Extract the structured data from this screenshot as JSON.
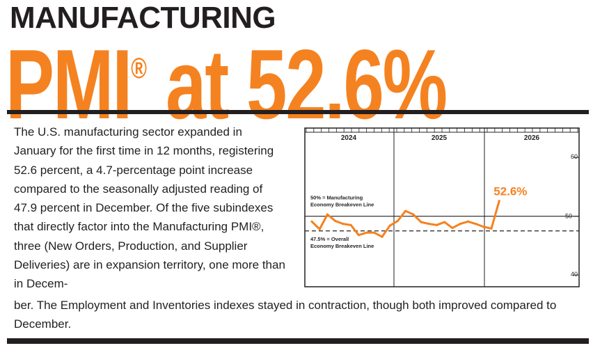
{
  "header": {
    "kicker": "MANUFACTURING",
    "headline_main": "PMI",
    "headline_reg": "®",
    "headline_rest": " at 52.6%"
  },
  "article": {
    "paragraph_part1": "The U.S. manufacturing sector expanded in January for the first time in 12 months, registering 52.6 percent, a 4.7-percentage point increase compared to the seasonally adjusted reading of 47.9 percent in December. Of the five subindexes that directly factor into the Manufacturing PMI®, three (New Orders, Production, and Supplier Deliveries) are in expansion territory, one more than in Decem-",
    "paragraph_part2": "ber. The Employment and Inventories indexes stayed in contraction, though both improved compared to December."
  },
  "colors": {
    "accent": "#f58220",
    "text": "#231f20"
  },
  "chart_data": {
    "type": "line",
    "title": "",
    "year_labels": [
      "2024",
      "2025",
      "2026"
    ],
    "x": [
      "2024-01",
      "2024-02",
      "2024-03",
      "2024-04",
      "2024-05",
      "2024-06",
      "2024-07",
      "2024-08",
      "2024-09",
      "2024-10",
      "2024-11",
      "2024-12",
      "2025-01",
      "2025-02",
      "2025-03",
      "2025-04",
      "2025-05",
      "2025-06",
      "2025-07",
      "2025-08",
      "2025-09",
      "2025-10",
      "2025-11",
      "2025-12",
      "2026-01"
    ],
    "series": [
      {
        "name": "Manufacturing PMI",
        "values": [
          49.1,
          47.8,
          50.3,
          49.2,
          48.7,
          48.5,
          46.8,
          47.2,
          47.2,
          46.5,
          48.4,
          49.2,
          50.9,
          50.3,
          49.0,
          48.7,
          48.5,
          49.0,
          48.0,
          48.7,
          49.1,
          48.7,
          48.2,
          47.9,
          52.6
        ]
      }
    ],
    "ylim": [
      38,
      65
    ],
    "yticks": [
      40,
      50,
      60
    ],
    "reference_lines": [
      {
        "value": 50,
        "label_line1": "50% = Manufacturing",
        "label_line2": "Economy Breakeven Line",
        "style": "solid"
      },
      {
        "value": 47.5,
        "label_line1": "47.5% = Overall",
        "label_line2": "Economy Breakeven Line",
        "style": "dashed"
      }
    ],
    "callout": "52.6%",
    "xlabel": "",
    "ylabel": ""
  }
}
